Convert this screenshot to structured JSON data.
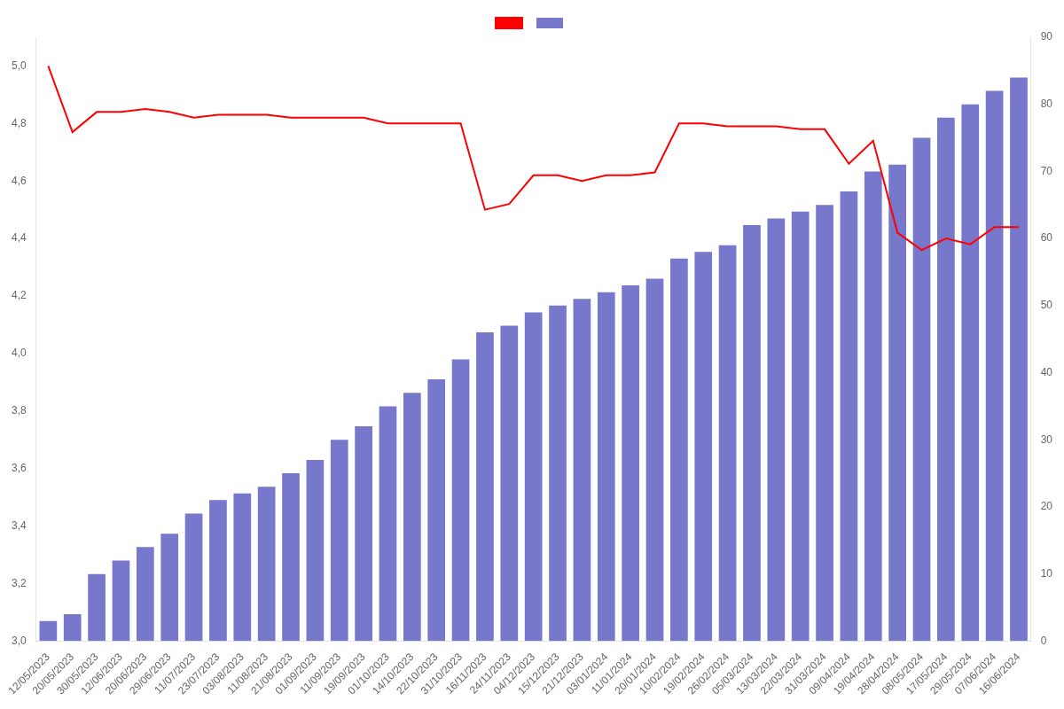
{
  "chart_data": {
    "type": "bar",
    "categories": [
      "12/05/2023",
      "20/05/2023",
      "30/05/2023",
      "12/06/2023",
      "20/06/2023",
      "29/06/2023",
      "11/07/2023",
      "23/07/2023",
      "03/08/2023",
      "11/08/2023",
      "21/08/2023",
      "01/09/2023",
      "11/09/2023",
      "19/09/2023",
      "01/10/2023",
      "14/10/2023",
      "22/10/2023",
      "31/10/2023",
      "16/11/2023",
      "24/11/2023",
      "04/12/2023",
      "15/12/2023",
      "21/12/2023",
      "03/01/2024",
      "11/01/2024",
      "20/01/2024",
      "10/02/2024",
      "19/02/2024",
      "26/02/2024",
      "05/03/2024",
      "13/03/2024",
      "22/03/2024",
      "31/03/2024",
      "09/04/2024",
      "19/04/2024",
      "28/04/2024",
      "08/05/2024",
      "17/05/2024",
      "29/05/2024",
      "07/06/2024",
      "16/06/2024"
    ],
    "series": [
      {
        "type": "line",
        "color": "#ff0000",
        "values": [
          5.0,
          4.77,
          4.84,
          4.84,
          4.85,
          4.84,
          4.82,
          4.83,
          4.83,
          4.83,
          4.82,
          4.82,
          4.82,
          4.82,
          4.8,
          4.8,
          4.8,
          4.8,
          4.5,
          4.52,
          4.62,
          4.62,
          4.6,
          4.62,
          4.62,
          4.63,
          4.8,
          4.8,
          4.79,
          4.79,
          4.79,
          4.78,
          4.78,
          4.66,
          4.74,
          4.42,
          4.36,
          4.4,
          4.38,
          4.44,
          4.44
        ]
      },
      {
        "type": "bar",
        "color": "#7777cc",
        "axis": "y2",
        "values": [
          3,
          4,
          10,
          12,
          14,
          16,
          19,
          21,
          22,
          23,
          25,
          27,
          30,
          32,
          35,
          37,
          39,
          42,
          46,
          47,
          49,
          50,
          51,
          52,
          53,
          54,
          57,
          58,
          59,
          62,
          63,
          64,
          65,
          67,
          70,
          71,
          75,
          78,
          80,
          82,
          84
        ]
      }
    ],
    "ylim": [
      3.0,
      5.1
    ],
    "yticks": [
      {
        "value": 3.0,
        "label": "3,0"
      },
      {
        "value": 3.2,
        "label": "3,2"
      },
      {
        "value": 3.4,
        "label": "3,4"
      },
      {
        "value": 3.6,
        "label": "3,6"
      },
      {
        "value": 3.8,
        "label": "3,8"
      },
      {
        "value": 4.0,
        "label": "4,0"
      },
      {
        "value": 4.2,
        "label": "4,2"
      },
      {
        "value": 4.4,
        "label": "4,4"
      },
      {
        "value": 4.6,
        "label": "4,6"
      },
      {
        "value": 4.8,
        "label": "4,8"
      },
      {
        "value": 5.0,
        "label": "5,0"
      }
    ],
    "y2lim": [
      0,
      90
    ],
    "y2ticks": [
      0,
      10,
      20,
      30,
      40,
      50,
      60,
      70,
      80,
      90
    ],
    "grid": false,
    "legend": "top"
  }
}
